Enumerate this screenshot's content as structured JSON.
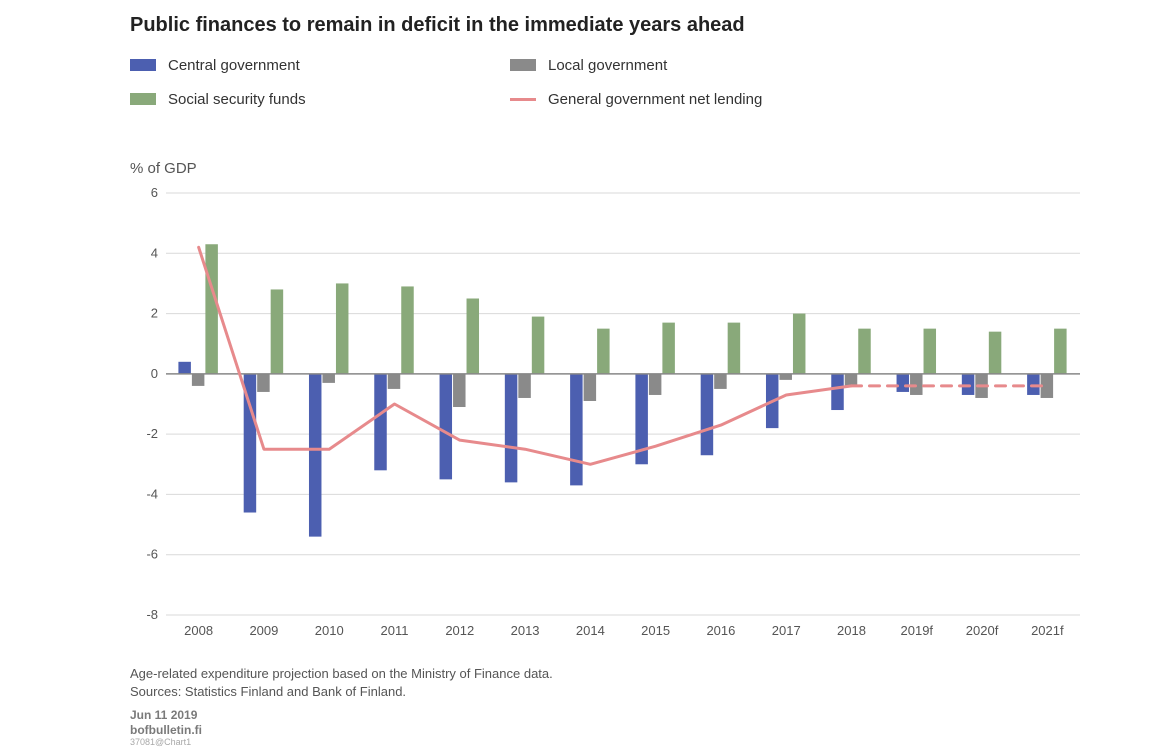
{
  "title": "Public finances to remain in deficit in the immediate years ahead",
  "y_axis_label": "% of GDP",
  "footnote": "Age-related expenditure projection based on the Ministry of Finance data.\nSources: Statistics Finland and Bank of Finland.",
  "date_line": "Jun 11 2019",
  "site_line": "bofbulletin.fi",
  "id_line": "37081@Chart1",
  "chart": {
    "type": "bar+line",
    "background_color": "#ffffff",
    "grid_color": "#d9d9d9",
    "axis_text_color": "#555555",
    "axis_fontsize": 13,
    "ylim": [
      -8,
      6
    ],
    "ytick_step": 2,
    "xlabels": [
      "2008",
      "2009",
      "2010",
      "2011",
      "2012",
      "2013",
      "2014",
      "2015",
      "2016",
      "2017",
      "2018",
      "2019f",
      "2020f",
      "2021f"
    ],
    "forecast_start_index": 11,
    "bar_group_width": 0.62,
    "series": [
      {
        "key": "central_govt",
        "label": "Central government",
        "type": "bar",
        "color": "#4c5fb0",
        "values": [
          0.4,
          -4.6,
          -5.4,
          -3.2,
          -3.5,
          -3.6,
          -3.7,
          -3.0,
          -2.7,
          -1.8,
          -1.2,
          -0.6,
          -0.7,
          -0.7
        ]
      },
      {
        "key": "local_govt",
        "label": "Local government",
        "type": "bar",
        "color": "#8a8a8a",
        "values": [
          -0.4,
          -0.6,
          -0.3,
          -0.5,
          -1.1,
          -0.8,
          -0.9,
          -0.7,
          -0.5,
          -0.2,
          -0.4,
          -0.7,
          -0.8,
          -0.8
        ]
      },
      {
        "key": "social_security",
        "label": "Social security funds",
        "type": "bar",
        "color": "#89a97a",
        "values": [
          4.3,
          2.8,
          3.0,
          2.9,
          2.5,
          1.9,
          1.5,
          1.7,
          1.7,
          2.0,
          1.5,
          1.5,
          1.4,
          1.5
        ]
      },
      {
        "key": "net_lending",
        "label": "General government net lending",
        "type": "line",
        "color": "#e78a8c",
        "line_width": 3,
        "values": [
          4.2,
          -2.5,
          -2.5,
          -1.0,
          -2.2,
          -2.5,
          -3.0,
          -2.4,
          -1.7,
          -0.7,
          -0.4,
          -0.4,
          -0.4,
          -0.4
        ],
        "dash_after_index": 10
      }
    ]
  },
  "legend": {
    "rows": [
      [
        {
          "swatch_color": "#4c5fb0",
          "swatch_type": "box",
          "label": "Central government"
        },
        {
          "swatch_color": "#8a8a8a",
          "swatch_type": "box",
          "label": "Local government"
        }
      ],
      [
        {
          "swatch_color": "#89a97a",
          "swatch_type": "box",
          "label": "Social security funds"
        },
        {
          "swatch_color": "#e78a8c",
          "swatch_type": "line",
          "label": "General government net lending"
        }
      ]
    ]
  }
}
